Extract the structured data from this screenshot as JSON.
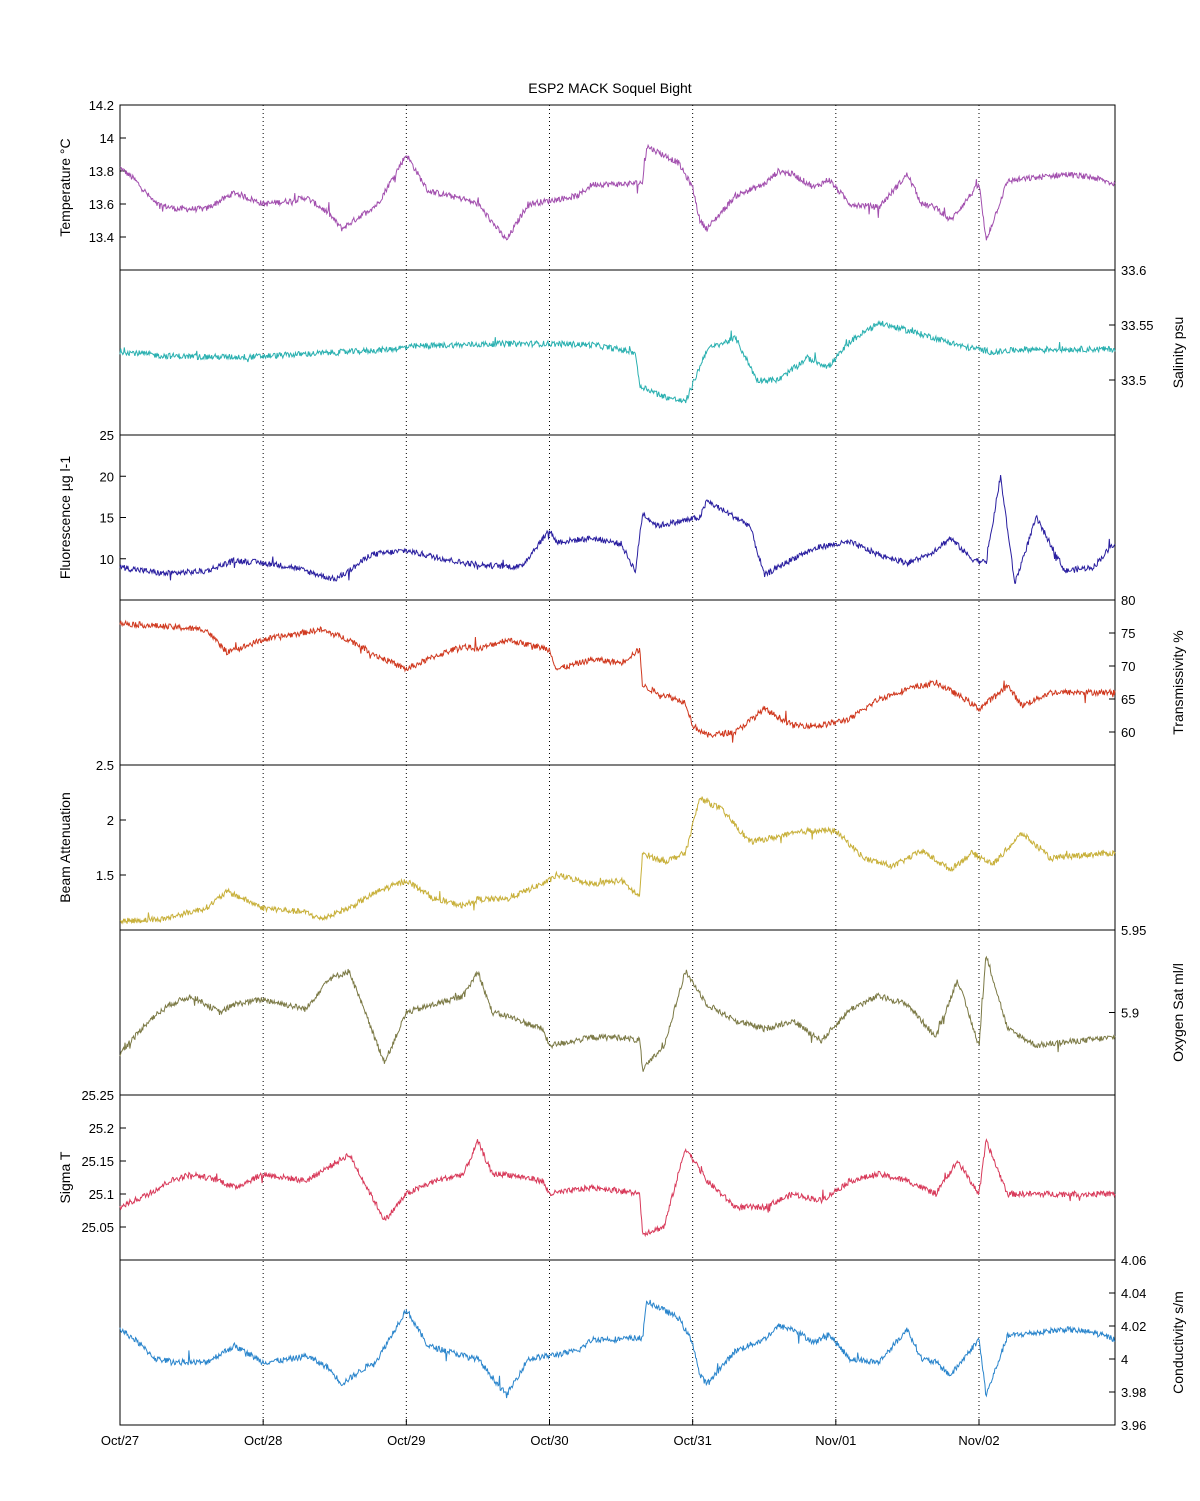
{
  "chart_data": {
    "type": "line",
    "title": "ESP2 MACK  Soquel Bight",
    "x_ticks": [
      "Oct/27",
      "Oct/28",
      "Oct/29",
      "Oct/30",
      "Oct/31",
      "Nov/01",
      "Nov/02"
    ],
    "x_range_days": [
      0,
      6.95
    ],
    "grid": "vertical dotted at day ticks",
    "panels": [
      {
        "id": "temperature",
        "ylabel": "Temperature °C",
        "axis_side": "left",
        "ylim": [
          13.2,
          14.2
        ],
        "tick_values": [
          13.4,
          13.6,
          13.8,
          14
        ],
        "tick_labels": [
          "13.4",
          "13.6",
          "13.8",
          "14"
        ],
        "top_label": "14.2",
        "bottom_label": "13.2",
        "color": "#a24fae",
        "x": [
          0,
          0.1,
          0.25,
          0.4,
          0.6,
          0.8,
          1.0,
          1.2,
          1.3,
          1.45,
          1.55,
          1.8,
          2.0,
          2.15,
          2.4,
          2.5,
          2.7,
          2.85,
          3.0,
          3.2,
          3.3,
          3.5,
          3.65,
          3.68,
          3.9,
          4.0,
          4.05,
          4.1,
          4.3,
          4.5,
          4.6,
          4.7,
          4.85,
          4.95,
          5.1,
          5.3,
          5.5,
          5.6,
          5.7,
          5.8,
          6.0,
          6.05,
          6.2,
          6.4,
          6.6,
          6.8,
          6.95
        ],
        "y": [
          13.82,
          13.75,
          13.6,
          13.57,
          13.57,
          13.67,
          13.6,
          13.62,
          13.64,
          13.55,
          13.45,
          13.6,
          13.9,
          13.68,
          13.63,
          13.6,
          13.38,
          13.6,
          13.62,
          13.65,
          13.72,
          13.72,
          13.73,
          13.95,
          13.85,
          13.7,
          13.5,
          13.45,
          13.65,
          13.72,
          13.8,
          13.78,
          13.7,
          13.75,
          13.6,
          13.58,
          13.78,
          13.6,
          13.58,
          13.5,
          13.72,
          13.38,
          13.74,
          13.76,
          13.78,
          13.76,
          13.72
        ]
      },
      {
        "id": "salinity",
        "ylabel": "Salinity psu",
        "axis_side": "right",
        "ylim": [
          33.45,
          33.6
        ],
        "tick_values": [
          33.5,
          33.55
        ],
        "tick_labels": [
          "33.5",
          "33.55"
        ],
        "top_label": "33.6",
        "bottom_label": "33.45",
        "color": "#2ab0b0",
        "x": [
          0,
          0.3,
          0.6,
          0.9,
          1.2,
          1.5,
          1.8,
          2.1,
          2.4,
          2.7,
          3.0,
          3.3,
          3.6,
          3.63,
          3.8,
          3.95,
          4.1,
          4.3,
          4.45,
          4.6,
          4.8,
          4.95,
          5.1,
          5.3,
          5.5,
          5.7,
          5.9,
          6.0,
          6.1,
          6.3,
          6.5,
          6.7,
          6.95
        ],
        "y": [
          33.526,
          33.522,
          33.521,
          33.521,
          33.523,
          33.525,
          33.527,
          33.531,
          33.532,
          33.533,
          33.533,
          33.532,
          33.525,
          33.495,
          33.485,
          33.48,
          33.528,
          33.538,
          33.5,
          33.5,
          33.52,
          33.512,
          33.535,
          33.552,
          33.545,
          33.538,
          33.53,
          33.528,
          33.525,
          33.528,
          33.528,
          33.528,
          33.528
        ]
      },
      {
        "id": "fluorescence",
        "ylabel": "Fluorescence µg l-1",
        "axis_side": "left",
        "ylim": [
          5,
          25
        ],
        "tick_values": [
          10,
          15,
          20
        ],
        "tick_labels": [
          "10",
          "15",
          "20"
        ],
        "top_label": "25",
        "bottom_label": "5",
        "color": "#2a1fa0",
        "x": [
          0,
          0.3,
          0.6,
          0.8,
          1.0,
          1.2,
          1.5,
          1.6,
          1.75,
          2.0,
          2.2,
          2.4,
          2.55,
          2.8,
          3.0,
          3.05,
          3.3,
          3.5,
          3.6,
          3.65,
          3.75,
          4.05,
          4.1,
          4.25,
          4.4,
          4.5,
          4.75,
          4.9,
          5.1,
          5.3,
          5.5,
          5.65,
          5.8,
          5.95,
          6.05,
          6.15,
          6.25,
          6.4,
          6.6,
          6.8,
          6.95
        ],
        "y": [
          9,
          8.2,
          8.5,
          9.8,
          9.5,
          9,
          7.5,
          8.5,
          10.5,
          11,
          10.2,
          9.5,
          9.2,
          9,
          13.5,
          12,
          12.5,
          11.8,
          8.5,
          15.5,
          14,
          15,
          17,
          15.5,
          14,
          8,
          10.5,
          11.5,
          12,
          10.5,
          9.5,
          10.5,
          12.5,
          10,
          9.5,
          20,
          7,
          15,
          8.5,
          9,
          12
        ]
      },
      {
        "id": "transmissivity",
        "ylabel": "Transmissivity %",
        "axis_side": "right",
        "ylim": [
          55,
          80
        ],
        "tick_values": [
          60,
          65,
          70,
          75
        ],
        "tick_labels": [
          "60",
          "65",
          "70",
          "75"
        ],
        "top_label": "80",
        "bottom_label": "55",
        "color": "#d0391f",
        "x": [
          0,
          0.3,
          0.6,
          0.75,
          1.0,
          1.4,
          1.6,
          1.8,
          2.0,
          2.2,
          2.4,
          2.5,
          2.7,
          3.0,
          3.05,
          3.3,
          3.5,
          3.63,
          3.65,
          3.75,
          3.95,
          4.0,
          4.1,
          4.3,
          4.5,
          4.7,
          4.9,
          5.1,
          5.3,
          5.5,
          5.7,
          5.9,
          6.0,
          6.2,
          6.3,
          6.5,
          6.7,
          6.95
        ],
        "y": [
          76.5,
          76,
          75.5,
          72,
          74,
          75.5,
          74,
          71.5,
          69.5,
          71.5,
          73,
          72.5,
          74,
          72.5,
          69.5,
          71,
          70.5,
          72.5,
          67,
          66,
          64.5,
          61,
          59.5,
          60,
          63.5,
          61,
          61,
          62,
          65,
          66.5,
          67.5,
          65,
          63.5,
          67,
          64,
          66,
          66,
          66
        ]
      },
      {
        "id": "beam_attenuation",
        "ylabel": "Beam Attenuation",
        "axis_side": "left",
        "ylim": [
          1,
          2.5
        ],
        "tick_values": [
          1.5,
          2
        ],
        "tick_labels": [
          "1.5",
          "2"
        ],
        "top_label": "2.5",
        "bottom_label": "1",
        "color": "#c8b03a",
        "x": [
          0,
          0.3,
          0.6,
          0.75,
          1.0,
          1.3,
          1.4,
          1.6,
          1.8,
          2.0,
          2.2,
          2.4,
          2.5,
          2.7,
          3.0,
          3.05,
          3.3,
          3.5,
          3.63,
          3.65,
          3.8,
          3.95,
          4.05,
          4.2,
          4.4,
          4.6,
          4.8,
          5.0,
          5.2,
          5.4,
          5.6,
          5.8,
          5.95,
          6.1,
          6.3,
          6.5,
          6.7,
          6.95
        ],
        "y": [
          1.08,
          1.1,
          1.2,
          1.35,
          1.2,
          1.16,
          1.1,
          1.2,
          1.35,
          1.45,
          1.28,
          1.22,
          1.28,
          1.28,
          1.45,
          1.5,
          1.42,
          1.45,
          1.3,
          1.7,
          1.62,
          1.7,
          2.2,
          2.1,
          1.8,
          1.85,
          1.9,
          1.9,
          1.65,
          1.58,
          1.72,
          1.55,
          1.7,
          1.6,
          1.88,
          1.65,
          1.68,
          1.7
        ]
      },
      {
        "id": "oxygen_sat",
        "ylabel": "Oxygen Sat ml/l",
        "axis_side": "right",
        "ylim": [
          5.85,
          5.95
        ],
        "tick_values": [
          5.9
        ],
        "tick_labels": [
          "5.9"
        ],
        "top_label": "5.95",
        "bottom_label": "5.85",
        "color": "#7c7a46",
        "x": [
          0,
          0.2,
          0.35,
          0.5,
          0.7,
          0.8,
          1.0,
          1.3,
          1.45,
          1.6,
          1.8,
          1.85,
          2.0,
          2.2,
          2.4,
          2.5,
          2.6,
          2.7,
          2.95,
          3.0,
          3.3,
          3.5,
          3.63,
          3.65,
          3.8,
          3.95,
          4.1,
          4.3,
          4.5,
          4.7,
          4.9,
          5.1,
          5.3,
          5.5,
          5.7,
          5.85,
          6.0,
          6.05,
          6.2,
          6.4,
          6.6,
          6.95
        ],
        "y": [
          5.875,
          5.895,
          5.905,
          5.91,
          5.9,
          5.905,
          5.908,
          5.902,
          5.92,
          5.925,
          5.88,
          5.87,
          5.9,
          5.905,
          5.91,
          5.925,
          5.9,
          5.898,
          5.89,
          5.88,
          5.885,
          5.885,
          5.883,
          5.865,
          5.88,
          5.925,
          5.905,
          5.895,
          5.89,
          5.895,
          5.883,
          5.902,
          5.91,
          5.905,
          5.885,
          5.92,
          5.88,
          5.935,
          5.89,
          5.88,
          5.882,
          5.885
        ]
      },
      {
        "id": "sigma_t",
        "ylabel": "Sigma T",
        "axis_side": "left",
        "ylim": [
          25,
          25.25
        ],
        "tick_values": [
          25.05,
          25.1,
          25.15,
          25.2
        ],
        "tick_labels": [
          "25.05",
          "25.1",
          "25.15",
          "25.2"
        ],
        "top_label": "25.25",
        "bottom_label": "25",
        "color": "#d83a5a",
        "x": [
          0,
          0.2,
          0.35,
          0.5,
          0.7,
          0.8,
          1.0,
          1.3,
          1.45,
          1.6,
          1.8,
          1.85,
          2.0,
          2.2,
          2.4,
          2.5,
          2.6,
          2.7,
          2.95,
          3.0,
          3.3,
          3.5,
          3.63,
          3.65,
          3.8,
          3.95,
          4.1,
          4.3,
          4.5,
          4.7,
          4.9,
          5.1,
          5.3,
          5.5,
          5.7,
          5.85,
          6.0,
          6.05,
          6.2,
          6.4,
          6.6,
          6.95
        ],
        "y": [
          25.08,
          25.1,
          25.12,
          25.13,
          25.12,
          25.11,
          25.13,
          25.12,
          25.14,
          25.16,
          25.08,
          25.06,
          25.1,
          25.12,
          25.13,
          25.18,
          25.13,
          25.13,
          25.12,
          25.1,
          25.11,
          25.105,
          25.1,
          25.04,
          25.05,
          25.17,
          25.12,
          25.08,
          25.08,
          25.1,
          25.09,
          25.12,
          25.13,
          25.12,
          25.1,
          25.15,
          25.1,
          25.18,
          25.1,
          25.1,
          25.1,
          25.1
        ]
      },
      {
        "id": "conductivity",
        "ylabel": "Conductivity s/m",
        "axis_side": "right",
        "ylim": [
          3.96,
          4.06
        ],
        "tick_values": [
          3.98,
          4,
          4.02,
          4.04
        ],
        "tick_labels": [
          "3.98",
          "4",
          "4.02",
          "4.04"
        ],
        "top_label": "4.06",
        "bottom_label": "3.96",
        "color": "#2a85cc",
        "x": [
          0,
          0.1,
          0.25,
          0.4,
          0.6,
          0.8,
          1.0,
          1.2,
          1.3,
          1.45,
          1.55,
          1.8,
          2.0,
          2.15,
          2.4,
          2.5,
          2.7,
          2.85,
          3.0,
          3.2,
          3.3,
          3.5,
          3.65,
          3.68,
          3.9,
          4.0,
          4.05,
          4.1,
          4.3,
          4.5,
          4.6,
          4.7,
          4.85,
          4.95,
          5.1,
          5.3,
          5.5,
          5.6,
          5.7,
          5.8,
          6.0,
          6.05,
          6.2,
          6.4,
          6.6,
          6.8,
          6.95
        ],
        "y": [
          4.018,
          4.012,
          4.0,
          3.998,
          3.998,
          4.008,
          3.998,
          4.0,
          4.002,
          3.995,
          3.985,
          4.0,
          4.03,
          4.008,
          4.002,
          4.0,
          3.978,
          4.0,
          4.002,
          4.005,
          4.012,
          4.012,
          4.013,
          4.035,
          4.025,
          4.01,
          3.99,
          3.985,
          4.005,
          4.012,
          4.02,
          4.018,
          4.01,
          4.015,
          4.0,
          3.998,
          4.018,
          4.0,
          3.998,
          3.99,
          4.012,
          3.978,
          4.014,
          4.016,
          4.018,
          4.016,
          4.012
        ]
      }
    ]
  }
}
